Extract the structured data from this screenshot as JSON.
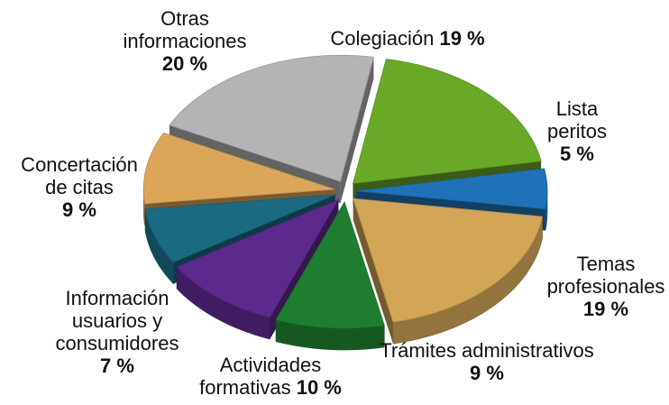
{
  "chart_data": {
    "type": "pie",
    "categories": [
      "Colegiación",
      "Lista peritos",
      "Temas profesionales",
      "Trámites administrativos",
      "Actividades formativas",
      "Información usuarios y consumidores",
      "Concertación de citas",
      "Otras informaciones"
    ],
    "values": [
      19,
      5,
      19,
      9,
      10,
      7,
      9,
      20
    ],
    "value_labels": [
      "19 %",
      "5 %",
      "19 %",
      "9 %",
      "10 %",
      "7 %",
      "9 %",
      "20 %"
    ],
    "colors": [
      "#6aa828",
      "#1f72b8",
      "#d2a656",
      "#1f7d30",
      "#5c2a8c",
      "#1a6a82",
      "#dca658",
      "#b4b4b4"
    ]
  }
}
